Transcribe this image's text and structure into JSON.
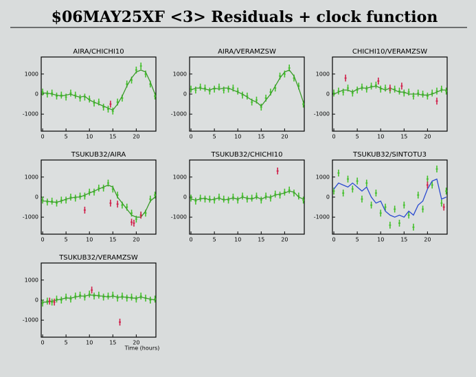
{
  "title": "$06MAY25XF <3> Residuals + clock function",
  "chart_data": [
    {
      "type": "line",
      "title": "AIRA/CHICHI10",
      "xlim": [
        -0.3,
        24.2
      ],
      "ylim": [
        -1850,
        1850
      ],
      "xticks": [
        0,
        5,
        10,
        15,
        20
      ],
      "yticks": [
        -1000,
        0,
        1000
      ],
      "x": [
        0,
        1,
        2,
        3,
        4,
        5,
        6,
        7,
        8,
        9,
        10,
        11,
        12,
        13,
        14,
        15,
        16,
        17,
        18,
        19,
        20,
        21,
        22,
        23,
        24
      ],
      "series": [
        {
          "style": "points",
          "color": "#44c02c",
          "values": [
            100,
            0,
            50,
            -100,
            -50,
            -150,
            50,
            -50,
            -200,
            -150,
            -250,
            -450,
            -400,
            -650,
            -750,
            -850,
            -400,
            -200,
            500,
            700,
            1200,
            1400,
            1000,
            500,
            -100
          ]
        },
        {
          "style": "line",
          "color": "#3a9a2a",
          "values": [
            50,
            50,
            0,
            -50,
            -100,
            -50,
            0,
            -100,
            -150,
            -100,
            -300,
            -400,
            -500,
            -600,
            -700,
            -800,
            -500,
            -100,
            400,
            800,
            1100,
            1200,
            1100,
            600,
            0
          ]
        },
        {
          "style": "points",
          "color": "#d0204a",
          "x": [
            14.5
          ],
          "values": [
            -500
          ]
        }
      ]
    },
    {
      "type": "line",
      "title": "AIRA/VERAMZSW",
      "xlim": [
        -0.3,
        24.2
      ],
      "ylim": [
        -1850,
        1850
      ],
      "xticks": [
        0,
        5,
        10,
        15,
        20
      ],
      "yticks": [
        -1000,
        0,
        1000
      ],
      "x": [
        0,
        1,
        2,
        3,
        4,
        5,
        6,
        7,
        8,
        9,
        10,
        11,
        12,
        13,
        14,
        15,
        16,
        17,
        18,
        19,
        20,
        21,
        22,
        23,
        24
      ],
      "series": [
        {
          "style": "points",
          "color": "#44c02c",
          "values": [
            250,
            200,
            350,
            300,
            150,
            250,
            350,
            200,
            250,
            300,
            150,
            -50,
            -100,
            -400,
            -300,
            -650,
            -200,
            100,
            300,
            900,
            1000,
            1300,
            800,
            400,
            -500
          ]
        },
        {
          "style": "line",
          "color": "#3a9a2a",
          "values": [
            200,
            300,
            300,
            250,
            200,
            300,
            250,
            300,
            300,
            200,
            100,
            0,
            -150,
            -300,
            -400,
            -600,
            -300,
            0,
            400,
            800,
            1100,
            1200,
            900,
            300,
            -400
          ]
        }
      ]
    },
    {
      "type": "line",
      "title": "CHICHI10/VERAMZSW",
      "xlim": [
        -0.3,
        24.2
      ],
      "ylim": [
        -1850,
        1850
      ],
      "xticks": [
        0,
        5,
        10,
        15,
        20
      ],
      "yticks": [
        -1000,
        0,
        1000
      ],
      "x": [
        0,
        1,
        2,
        3,
        4,
        5,
        6,
        7,
        8,
        9,
        10,
        11,
        12,
        13,
        14,
        15,
        16,
        17,
        18,
        19,
        20,
        21,
        22,
        23,
        24
      ],
      "series": [
        {
          "style": "points",
          "color": "#44c02c",
          "values": [
            50,
            150,
            100,
            300,
            50,
            200,
            350,
            250,
            400,
            450,
            250,
            300,
            200,
            250,
            150,
            50,
            100,
            -100,
            50,
            0,
            -100,
            50,
            150,
            250,
            150
          ]
        },
        {
          "style": "line",
          "color": "#3a9a2a",
          "values": [
            0,
            100,
            200,
            200,
            100,
            250,
            300,
            300,
            350,
            400,
            300,
            200,
            300,
            200,
            100,
            100,
            0,
            0,
            0,
            -50,
            -50,
            0,
            100,
            200,
            200
          ]
        },
        {
          "style": "points",
          "color": "#d0204a",
          "x": [
            2.5,
            9.5,
            12,
            14.5,
            22
          ],
          "values": [
            800,
            650,
            300,
            400,
            -350
          ]
        }
      ]
    },
    {
      "type": "line",
      "title": "TSUKUB32/AIRA",
      "xlim": [
        -0.3,
        24.2
      ],
      "ylim": [
        -1850,
        1850
      ],
      "xticks": [
        0,
        5,
        10,
        15,
        20
      ],
      "yticks": [
        -1000,
        0,
        1000
      ],
      "x": [
        0,
        1,
        2,
        3,
        4,
        5,
        6,
        7,
        8,
        9,
        10,
        11,
        12,
        13,
        14,
        15,
        16,
        17,
        18,
        19,
        20,
        21,
        22,
        23,
        24
      ],
      "series": [
        {
          "style": "points",
          "color": "#44c02c",
          "values": [
            -150,
            -250,
            -200,
            -300,
            -150,
            -150,
            0,
            -50,
            50,
            50,
            250,
            250,
            450,
            450,
            700,
            400,
            100,
            -400,
            -500,
            -800,
            -1100,
            -900,
            -800,
            -100,
            100
          ]
        },
        {
          "style": "line",
          "color": "#3a9a2a",
          "values": [
            -200,
            -200,
            -250,
            -250,
            -200,
            -100,
            -50,
            0,
            0,
            100,
            200,
            300,
            400,
            500,
            600,
            500,
            0,
            -300,
            -600,
            -900,
            -1000,
            -1000,
            -700,
            -200,
            0
          ]
        },
        {
          "style": "points",
          "color": "#d0204a",
          "x": [
            9,
            14.5,
            16,
            19,
            19.5,
            21
          ],
          "values": [
            -650,
            -300,
            -350,
            -1250,
            -1300,
            -900
          ]
        }
      ]
    },
    {
      "type": "line",
      "title": "TSUKUB32/CHICHI10",
      "xlim": [
        -0.3,
        24.2
      ],
      "ylim": [
        -1850,
        1850
      ],
      "xticks": [
        0,
        5,
        10,
        15,
        20
      ],
      "yticks": [
        -1000,
        0,
        1000
      ],
      "x": [
        0,
        1,
        2,
        3,
        4,
        5,
        6,
        7,
        8,
        9,
        10,
        11,
        12,
        13,
        14,
        15,
        16,
        17,
        18,
        19,
        20,
        21,
        22,
        23,
        24
      ],
      "series": [
        {
          "style": "points",
          "color": "#44c02c",
          "values": [
            -50,
            -200,
            -50,
            -100,
            -100,
            -150,
            0,
            -100,
            -150,
            0,
            -150,
            50,
            -100,
            -50,
            50,
            -150,
            50,
            -50,
            150,
            100,
            250,
            350,
            200,
            50,
            -150
          ]
        },
        {
          "style": "line",
          "color": "#3a9a2a",
          "values": [
            -100,
            -150,
            -100,
            -50,
            -150,
            -100,
            -50,
            -150,
            -100,
            -50,
            -100,
            0,
            -50,
            -100,
            0,
            -100,
            0,
            0,
            100,
            150,
            200,
            300,
            250,
            0,
            -100
          ]
        },
        {
          "style": "points",
          "color": "#d0204a",
          "x": [
            18.5
          ],
          "values": [
            1300
          ]
        }
      ]
    },
    {
      "type": "line",
      "title": "TSUKUB32/SINTOTU3",
      "xlim": [
        -0.3,
        24.2
      ],
      "ylim": [
        -1850,
        1850
      ],
      "xticks": [
        0,
        5,
        10,
        15,
        20
      ],
      "yticks": [
        -1000,
        0,
        1000
      ],
      "x": [
        0,
        1,
        2,
        3,
        4,
        5,
        6,
        7,
        8,
        9,
        10,
        11,
        12,
        13,
        14,
        15,
        16,
        17,
        18,
        19,
        20,
        21,
        22,
        23,
        24
      ],
      "series": [
        {
          "style": "points",
          "color": "#44c02c",
          "values": [
            300,
            1200,
            200,
            900,
            400,
            800,
            -100,
            700,
            -400,
            200,
            -800,
            -500,
            -1400,
            -600,
            -1300,
            -400,
            -900,
            -1500,
            100,
            -600,
            900,
            600,
            1400,
            -300,
            300
          ]
        },
        {
          "style": "line",
          "color": "#2a4ad0",
          "values": [
            400,
            700,
            600,
            500,
            700,
            500,
            300,
            500,
            0,
            -300,
            -200,
            -700,
            -900,
            -1000,
            -900,
            -1000,
            -700,
            -900,
            -400,
            -200,
            400,
            800,
            900,
            -100,
            0
          ]
        },
        {
          "style": "points",
          "color": "#d0204a",
          "x": [
            20,
            23.5
          ],
          "values": [
            600,
            -500
          ]
        }
      ]
    },
    {
      "type": "line",
      "title": "TSUKUB32/VERAMZSW",
      "xlabel": "Time (hours)",
      "xlim": [
        -0.3,
        24.2
      ],
      "ylim": [
        -1850,
        1850
      ],
      "xticks": [
        0,
        5,
        10,
        15,
        20
      ],
      "yticks": [
        -1000,
        0,
        1000
      ],
      "x": [
        0,
        1,
        2,
        3,
        4,
        5,
        6,
        7,
        8,
        9,
        10,
        11,
        12,
        13,
        14,
        15,
        16,
        17,
        18,
        19,
        20,
        21,
        22,
        23,
        24
      ],
      "series": [
        {
          "style": "points",
          "color": "#44c02c",
          "values": [
            -150,
            -50,
            -100,
            50,
            0,
            150,
            50,
            200,
            250,
            150,
            300,
            200,
            250,
            150,
            200,
            250,
            100,
            200,
            100,
            150,
            50,
            200,
            100,
            0,
            50
          ]
        },
        {
          "style": "line",
          "color": "#3a9a2a",
          "values": [
            -100,
            -100,
            -50,
            0,
            50,
            100,
            100,
            150,
            200,
            200,
            250,
            250,
            200,
            200,
            150,
            200,
            150,
            150,
            150,
            100,
            100,
            150,
            100,
            50,
            0
          ]
        },
        {
          "style": "points",
          "color": "#d0204a",
          "x": [
            1.5,
            2.5,
            10.5,
            16.5
          ],
          "values": [
            -50,
            -100,
            500,
            -1100
          ]
        }
      ]
    }
  ]
}
